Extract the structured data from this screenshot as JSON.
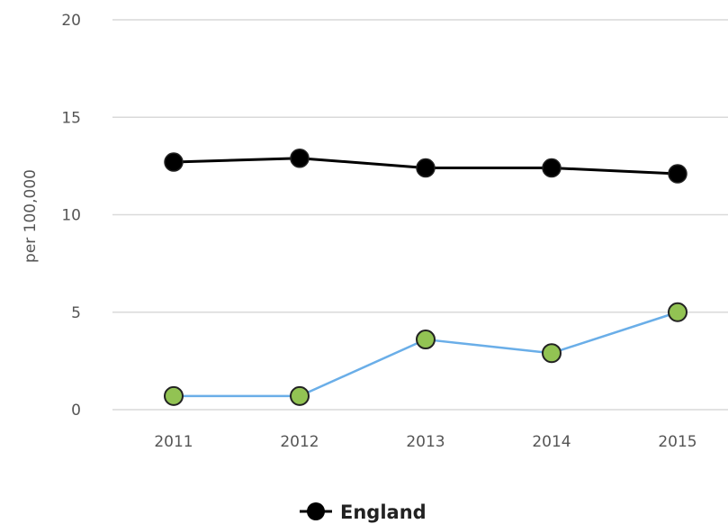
{
  "chart_data": {
    "type": "line",
    "categories": [
      "2011",
      "2012",
      "2013",
      "2014",
      "2015"
    ],
    "ylabel": "per 100,000",
    "xlabel": "",
    "title": "",
    "ylim": [
      0,
      20
    ],
    "yticks": [
      "0",
      "5",
      "10",
      "15",
      "20"
    ],
    "grid": true,
    "legend_position": "bottom",
    "series": [
      {
        "name": "England",
        "values": [
          12.7,
          12.9,
          12.4,
          12.4,
          12.1
        ],
        "line_color": "#000000",
        "marker_color": "#000000",
        "in_legend": true
      },
      {
        "values": [
          0.7,
          0.7,
          3.6,
          2.9,
          5.0
        ],
        "line_color": "#6aaee8",
        "marker_color": "#92c353",
        "in_legend": false
      }
    ]
  },
  "colors": {
    "grid": "#d9d9d9",
    "tick_text": "#555555",
    "legend_text": "#222222"
  }
}
